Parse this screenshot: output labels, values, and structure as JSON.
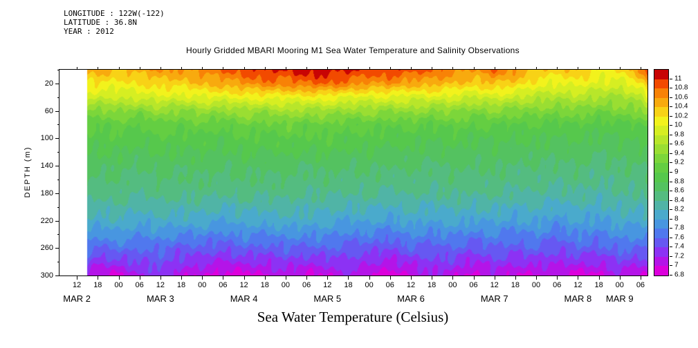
{
  "header": {
    "info_lines": [
      "LONGITUDE : 122W(-122)",
      "LATITUDE : 36.8N",
      "YEAR : 2012"
    ]
  },
  "chart_data": {
    "type": "heatmap",
    "title": "Hourly Gridded MBARI Mooring M1 Sea Water Temperature and Salinity Observations",
    "ylabel": "DEPTH (m)",
    "caption": "Sea Water Temperature (Celsius)",
    "units": "Celsius",
    "y_axis": {
      "depth_min": 0,
      "depth_max": 300,
      "tick_values": [
        20,
        60,
        100,
        140,
        180,
        220,
        260,
        300
      ],
      "minor_tick_values": [
        0,
        40,
        80,
        120,
        160,
        200,
        240,
        280
      ]
    },
    "x_axis": {
      "hour_min": -5,
      "hour_max": 164,
      "tick_start_hour": 0,
      "tick_step_hours": 6,
      "tick_labels": [
        "12",
        "18",
        "00",
        "06",
        "12",
        "18",
        "00",
        "06",
        "12",
        "18",
        "00",
        "06",
        "12",
        "18",
        "00",
        "06",
        "12",
        "18",
        "00",
        "06",
        "12",
        "18",
        "00",
        "06",
        "12",
        "18",
        "00",
        "06"
      ],
      "date_labels": [
        {
          "hour": 0,
          "label": "MAR 2"
        },
        {
          "hour": 24,
          "label": "MAR 3"
        },
        {
          "hour": 48,
          "label": "MAR 4"
        },
        {
          "hour": 72,
          "label": "MAR 5"
        },
        {
          "hour": 96,
          "label": "MAR 6"
        },
        {
          "hour": 120,
          "label": "MAR 7"
        },
        {
          "hour": 144,
          "label": "MAR 8"
        },
        {
          "hour": 156,
          "label": "MAR 9"
        }
      ]
    },
    "colorbar": {
      "level_min": 6.8,
      "level_step": 0.2,
      "tick_labels": [
        "6.8",
        "7",
        "7.2",
        "7.4",
        "7.6",
        "7.8",
        "8",
        "8.2",
        "8.4",
        "8.6",
        "8.8",
        "9",
        "9.2",
        "9.4",
        "9.6",
        "9.8",
        "10",
        "10.2",
        "10.4",
        "10.6",
        "10.8",
        "11"
      ],
      "colors": [
        "#dc00dc",
        "#b414e8",
        "#8c32f4",
        "#6658f2",
        "#5078ee",
        "#4896e0",
        "#4aaacc",
        "#50b4a6",
        "#54bc80",
        "#54c260",
        "#56c84c",
        "#64ce42",
        "#7cd63a",
        "#9ade32",
        "#b8e62a",
        "#d6ee22",
        "#f2f21c",
        "#f8d216",
        "#f8aa0e",
        "#f88206",
        "#f24a00",
        "#c80404"
      ]
    },
    "time_hours": [
      3,
      6,
      12,
      18,
      24,
      30,
      36,
      42,
      48,
      54,
      60,
      66,
      72,
      78,
      84,
      90,
      96,
      102,
      108,
      114,
      120,
      126,
      132,
      138,
      144,
      150,
      156,
      162,
      164
    ],
    "depths_m": [
      0,
      20,
      40,
      60,
      80,
      100,
      140,
      180,
      220,
      260,
      300
    ],
    "temperature_c": [
      [
        10.5,
        10.5,
        10.4,
        10.5,
        10.6,
        10.6,
        10.7,
        10.8,
        10.9,
        11.05,
        11.0,
        11.1,
        11.1,
        11.05,
        10.9,
        11.0,
        10.9,
        10.8,
        10.7,
        10.6,
        10.8,
        10.6,
        10.4,
        10.3,
        10.4,
        10.15,
        10.2,
        10.6,
        11.0
      ],
      [
        10.15,
        10.2,
        10.1,
        10.2,
        10.3,
        10.3,
        10.4,
        10.5,
        10.6,
        10.7,
        10.7,
        10.8,
        10.8,
        10.7,
        10.6,
        10.6,
        10.5,
        10.5,
        10.4,
        10.3,
        10.4,
        10.3,
        10.1,
        10.0,
        10.1,
        9.95,
        9.9,
        10.2,
        10.5
      ],
      [
        9.9,
        9.85,
        9.8,
        9.9,
        9.95,
        9.9,
        10.0,
        10.0,
        10.05,
        10.1,
        10.05,
        10.1,
        10.1,
        10.0,
        9.95,
        10.0,
        9.9,
        9.95,
        9.9,
        9.8,
        9.9,
        9.8,
        9.7,
        9.65,
        9.7,
        9.6,
        9.55,
        9.7,
        9.9
      ],
      [
        9.4,
        9.3,
        9.45,
        9.3,
        9.5,
        9.35,
        9.5,
        9.4,
        9.55,
        9.45,
        9.6,
        9.5,
        9.55,
        9.45,
        9.5,
        9.4,
        9.5,
        9.35,
        9.45,
        9.3,
        9.4,
        9.3,
        9.35,
        9.25,
        9.35,
        9.2,
        9.3,
        9.35,
        9.5
      ],
      [
        9.1,
        9.0,
        9.1,
        9.0,
        9.15,
        9.05,
        9.15,
        9.05,
        9.2,
        9.1,
        9.2,
        9.1,
        9.15,
        9.05,
        9.1,
        9.0,
        9.1,
        9.0,
        9.1,
        9.0,
        9.05,
        8.95,
        9.0,
        8.95,
        9.0,
        8.9,
        8.95,
        9.0,
        9.1
      ],
      [
        8.95,
        8.9,
        8.95,
        8.85,
        9.0,
        8.9,
        8.95,
        8.85,
        9.0,
        8.9,
        9.0,
        8.95,
        9.0,
        8.9,
        8.95,
        8.85,
        8.9,
        8.8,
        8.9,
        8.8,
        8.85,
        8.8,
        8.85,
        8.75,
        8.85,
        8.75,
        8.8,
        8.85,
        8.9
      ],
      [
        8.7,
        8.65,
        8.7,
        8.6,
        8.7,
        8.65,
        8.7,
        8.6,
        8.7,
        8.65,
        8.7,
        8.6,
        8.7,
        8.6,
        8.65,
        8.6,
        8.65,
        8.55,
        8.65,
        8.6,
        8.65,
        8.55,
        8.6,
        8.55,
        8.6,
        8.5,
        8.6,
        8.6,
        8.65
      ],
      [
        8.5,
        8.45,
        8.5,
        8.4,
        8.5,
        8.45,
        8.5,
        8.4,
        8.5,
        8.45,
        8.5,
        8.4,
        8.45,
        8.4,
        8.45,
        8.35,
        8.45,
        8.35,
        8.45,
        8.4,
        8.45,
        8.35,
        8.4,
        8.3,
        8.4,
        8.3,
        8.4,
        8.4,
        8.45
      ],
      [
        8.2,
        8.1,
        8.2,
        8.05,
        8.15,
        8.1,
        8.1,
        8.0,
        8.1,
        8.05,
        8.15,
        8.1,
        8.1,
        8.0,
        8.05,
        7.95,
        8.1,
        8.0,
        8.1,
        8.0,
        8.05,
        7.95,
        8.05,
        7.9,
        8.05,
        7.95,
        8.1,
        8.05,
        8.1
      ],
      [
        7.7,
        7.55,
        7.7,
        7.6,
        7.65,
        7.5,
        7.55,
        7.45,
        7.6,
        7.5,
        7.6,
        7.55,
        7.6,
        7.5,
        7.5,
        7.4,
        7.6,
        7.5,
        7.6,
        7.45,
        7.6,
        7.5,
        7.6,
        7.4,
        7.6,
        7.5,
        7.65,
        7.6,
        7.65
      ],
      [
        7.2,
        7.0,
        6.95,
        7.2,
        7.3,
        7.1,
        7.0,
        6.9,
        6.9,
        7.0,
        7.1,
        6.95,
        7.0,
        7.2,
        7.0,
        6.9,
        6.95,
        7.2,
        7.1,
        6.9,
        7.1,
        7.0,
        6.95,
        7.1,
        6.9,
        6.95,
        7.15,
        6.95,
        7.0
      ]
    ]
  }
}
